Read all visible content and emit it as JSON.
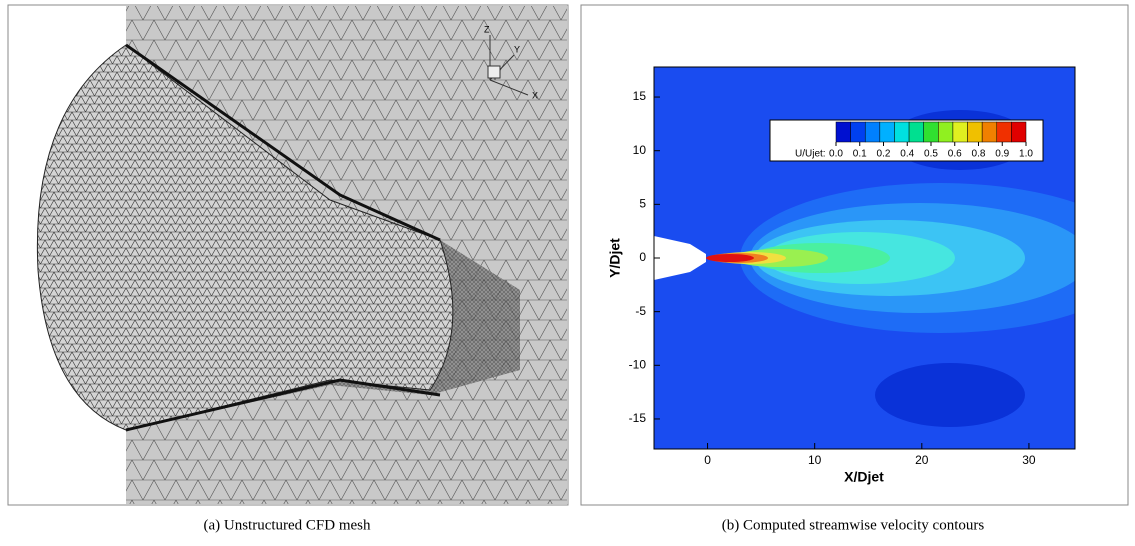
{
  "panels": {
    "a": {
      "caption": "(a)  Unstructured CFD mesh",
      "axes_labels": [
        "Z",
        "Y",
        "X"
      ]
    },
    "b": {
      "caption": "(b)  Computed streamwise velocity contours",
      "x_label": "X/Djet",
      "y_label": "Y/Djet",
      "xlim": [
        -5,
        34.3
      ],
      "ylim": [
        -17.8,
        17.8
      ],
      "xticks": [
        0,
        10,
        20,
        30
      ],
      "yticks": [
        -15,
        -10,
        -5,
        0,
        5,
        10,
        15
      ],
      "colorbar_label": "U/Ujet:",
      "colorbar_range": [
        0,
        1
      ],
      "colorbar_ticks": [
        {
          "value": 0,
          "label": "0.0"
        },
        {
          "value": 0.125,
          "label": "0.1"
        },
        {
          "value": 0.25,
          "label": "0.2"
        },
        {
          "value": 0.375,
          "label": "0.4"
        },
        {
          "value": 0.5,
          "label": "0.5"
        },
        {
          "value": 0.625,
          "label": "0.6"
        },
        {
          "value": 0.75,
          "label": "0.8"
        },
        {
          "value": 0.875,
          "label": "0.9"
        },
        {
          "value": 1,
          "label": "1.0"
        }
      ]
    }
  }
}
